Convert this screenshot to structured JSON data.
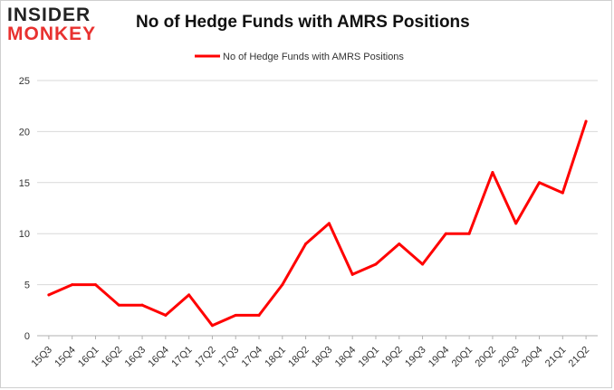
{
  "logo": {
    "line1": "INSIDER",
    "line2": "MONKEY"
  },
  "chart_data": {
    "type": "line",
    "title": "No of Hedge Funds with AMRS Positions",
    "xlabel": "",
    "ylabel": "",
    "categories": [
      "15Q3",
      "15Q4",
      "16Q1",
      "16Q2",
      "16Q3",
      "16Q4",
      "17Q1",
      "17Q2",
      "17Q3",
      "17Q4",
      "18Q1",
      "18Q2",
      "18Q3",
      "18Q4",
      "19Q1",
      "19Q2",
      "19Q3",
      "19Q4",
      "20Q1",
      "20Q2",
      "20Q3",
      "20Q4",
      "21Q1",
      "21Q2"
    ],
    "series": [
      {
        "name": "No of Hedge Funds with AMRS Positions",
        "color": "#ff0000",
        "values": [
          4,
          5,
          5,
          3,
          3,
          2,
          4,
          1,
          2,
          2,
          5,
          9,
          11,
          6,
          7,
          9,
          7,
          10,
          10,
          16,
          11,
          15,
          14,
          21
        ]
      }
    ],
    "ylim": [
      0,
      25
    ],
    "yticks": [
      0,
      5,
      10,
      15,
      20,
      25
    ],
    "grid": true,
    "legend": "top-center"
  }
}
